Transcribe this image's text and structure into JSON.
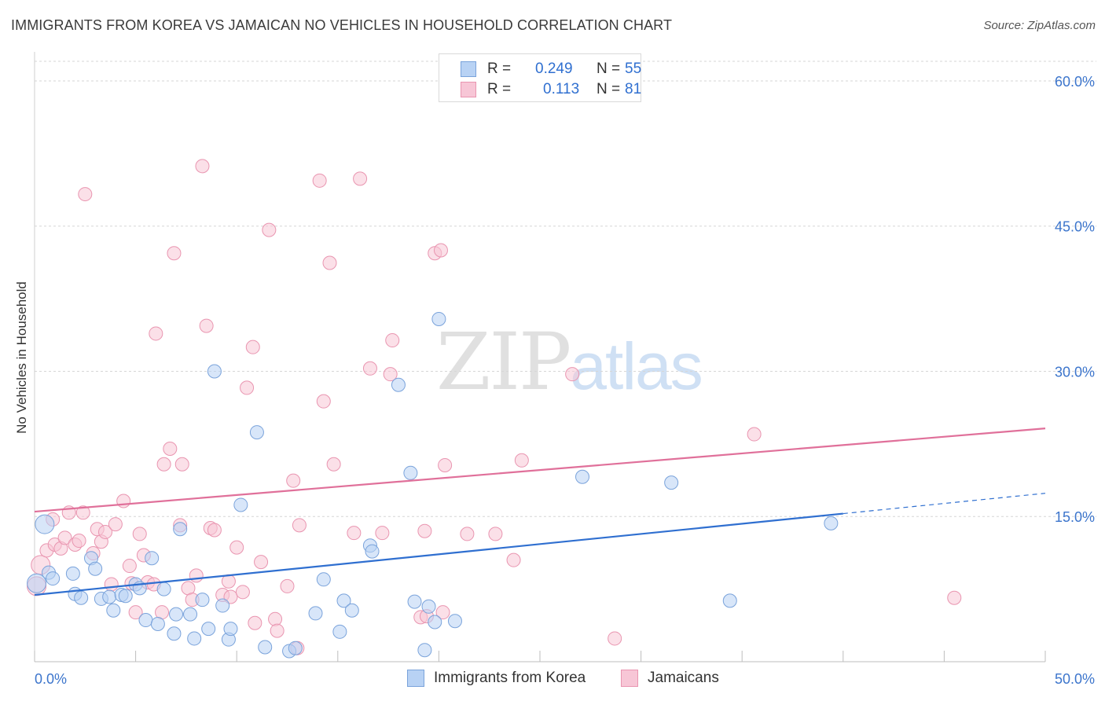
{
  "header": {
    "title": "IMMIGRANTS FROM KOREA VS JAMAICAN NO VEHICLES IN HOUSEHOLD CORRELATION CHART",
    "source": "Source: ZipAtlas.com"
  },
  "watermark": {
    "zip": "ZIP",
    "atlas": "atlas"
  },
  "stats": {
    "rows": [
      {
        "r_label": "R =",
        "r_value": "0.249",
        "n_label": "N =",
        "n_value": "55",
        "series": "Immigrants from Korea"
      },
      {
        "r_label": "R =",
        "r_value": "0.113",
        "n_label": "N =",
        "n_value": "81",
        "series": "Jamaicans"
      }
    ]
  },
  "legend": {
    "items": [
      {
        "label": "Immigrants from Korea"
      },
      {
        "label": "Jamaicans"
      }
    ]
  },
  "colors": {
    "blue_fill": "#b8d2f4",
    "blue_stroke": "#7aa3db",
    "blue_line": "#2f6fd0",
    "pink_fill": "#f7c6d6",
    "pink_stroke": "#e995b0",
    "pink_line": "#e0709a",
    "tick_label": "#3c75cc",
    "grid": "#d6d6d6"
  },
  "chart_data": {
    "type": "scatter",
    "title": "IMMIGRANTS FROM KOREA VS JAMAICAN NO VEHICLES IN HOUSEHOLD CORRELATION CHART",
    "xlabel": "",
    "ylabel": "No Vehicles in Household",
    "xlim": [
      0,
      50
    ],
    "ylim": [
      0,
      63
    ],
    "x_tick_labels": [
      "0.0%",
      "50.0%"
    ],
    "y_ticks": [
      15,
      30,
      45,
      60
    ],
    "y_tick_labels": [
      "15.0%",
      "30.0%",
      "45.0%",
      "60.0%"
    ],
    "grid": "horizontal dashed",
    "legend_position": "bottom-center",
    "series": [
      {
        "name": "Immigrants from Korea",
        "color": "#b8d2f4",
        "points": [
          [
            0.1,
            8.1
          ],
          [
            0.5,
            14.2
          ],
          [
            0.7,
            9.2
          ],
          [
            0.9,
            8.6
          ],
          [
            1.9,
            9.1
          ],
          [
            2.0,
            7.0
          ],
          [
            2.3,
            6.6
          ],
          [
            2.8,
            10.7
          ],
          [
            3.0,
            9.6
          ],
          [
            3.3,
            6.5
          ],
          [
            3.7,
            6.7
          ],
          [
            3.9,
            5.3
          ],
          [
            4.3,
            6.9
          ],
          [
            4.5,
            6.8
          ],
          [
            5.0,
            8.0
          ],
          [
            5.2,
            7.6
          ],
          [
            5.5,
            4.3
          ],
          [
            5.8,
            10.7
          ],
          [
            6.1,
            3.9
          ],
          [
            6.4,
            7.5
          ],
          [
            6.9,
            2.9
          ],
          [
            7.0,
            4.9
          ],
          [
            7.2,
            13.7
          ],
          [
            7.7,
            4.9
          ],
          [
            7.9,
            2.4
          ],
          [
            8.3,
            6.4
          ],
          [
            8.6,
            3.4
          ],
          [
            8.9,
            30.0
          ],
          [
            9.3,
            5.8
          ],
          [
            9.6,
            2.3
          ],
          [
            9.7,
            3.4
          ],
          [
            10.2,
            16.2
          ],
          [
            11.0,
            23.7
          ],
          [
            11.4,
            1.5
          ],
          [
            12.6,
            1.1
          ],
          [
            12.9,
            1.4
          ],
          [
            13.9,
            5.0
          ],
          [
            14.3,
            8.5
          ],
          [
            15.1,
            3.1
          ],
          [
            15.3,
            6.3
          ],
          [
            15.7,
            5.3
          ],
          [
            16.6,
            12.0
          ],
          [
            16.7,
            11.4
          ],
          [
            18.0,
            28.6
          ],
          [
            18.6,
            19.5
          ],
          [
            18.8,
            6.2
          ],
          [
            19.3,
            1.2
          ],
          [
            19.5,
            5.7
          ],
          [
            19.8,
            4.1
          ],
          [
            20.0,
            35.4
          ],
          [
            20.8,
            4.2
          ],
          [
            27.1,
            19.1
          ],
          [
            31.5,
            18.5
          ],
          [
            34.4,
            6.3
          ],
          [
            39.4,
            14.3
          ]
        ]
      },
      {
        "name": "Jamaicans",
        "color": "#f7c6d6",
        "points": [
          [
            0.1,
            7.8
          ],
          [
            0.3,
            10.0
          ],
          [
            0.6,
            11.5
          ],
          [
            0.9,
            14.7
          ],
          [
            1.0,
            12.1
          ],
          [
            1.3,
            11.7
          ],
          [
            1.5,
            12.8
          ],
          [
            1.7,
            15.4
          ],
          [
            2.0,
            12.1
          ],
          [
            2.2,
            12.5
          ],
          [
            2.4,
            15.4
          ],
          [
            2.5,
            48.3
          ],
          [
            2.9,
            11.2
          ],
          [
            3.1,
            13.7
          ],
          [
            3.3,
            12.4
          ],
          [
            3.5,
            13.4
          ],
          [
            3.8,
            8.0
          ],
          [
            4.0,
            14.2
          ],
          [
            4.4,
            16.6
          ],
          [
            4.7,
            9.9
          ],
          [
            4.8,
            8.1
          ],
          [
            5.0,
            5.1
          ],
          [
            5.2,
            13.2
          ],
          [
            5.4,
            11.0
          ],
          [
            5.6,
            8.2
          ],
          [
            5.9,
            8.0
          ],
          [
            6.0,
            33.9
          ],
          [
            6.3,
            5.1
          ],
          [
            6.4,
            20.4
          ],
          [
            6.7,
            22.0
          ],
          [
            6.9,
            42.2
          ],
          [
            7.2,
            14.1
          ],
          [
            7.3,
            20.4
          ],
          [
            7.6,
            7.6
          ],
          [
            7.8,
            6.4
          ],
          [
            8.0,
            8.9
          ],
          [
            8.3,
            51.2
          ],
          [
            8.5,
            34.7
          ],
          [
            8.7,
            13.8
          ],
          [
            8.9,
            13.6
          ],
          [
            9.3,
            6.9
          ],
          [
            9.6,
            8.3
          ],
          [
            9.7,
            6.7
          ],
          [
            10.0,
            11.8
          ],
          [
            10.3,
            7.2
          ],
          [
            10.5,
            28.3
          ],
          [
            10.8,
            32.5
          ],
          [
            10.9,
            4.0
          ],
          [
            11.2,
            10.3
          ],
          [
            11.6,
            44.6
          ],
          [
            11.9,
            4.4
          ],
          [
            12.0,
            3.2
          ],
          [
            12.5,
            7.8
          ],
          [
            12.8,
            18.7
          ],
          [
            13.0,
            1.4
          ],
          [
            13.1,
            14.1
          ],
          [
            14.1,
            49.7
          ],
          [
            14.3,
            26.9
          ],
          [
            14.6,
            41.2
          ],
          [
            14.8,
            20.4
          ],
          [
            15.8,
            13.3
          ],
          [
            16.1,
            49.9
          ],
          [
            16.6,
            30.3
          ],
          [
            17.2,
            13.3
          ],
          [
            17.6,
            29.7
          ],
          [
            17.7,
            33.2
          ],
          [
            19.1,
            4.6
          ],
          [
            19.3,
            13.5
          ],
          [
            19.4,
            4.7
          ],
          [
            19.8,
            42.2
          ],
          [
            20.1,
            42.5
          ],
          [
            20.2,
            5.1
          ],
          [
            20.3,
            20.3
          ],
          [
            21.4,
            13.2
          ],
          [
            22.8,
            13.2
          ],
          [
            23.7,
            10.5
          ],
          [
            24.1,
            20.8
          ],
          [
            26.6,
            29.7
          ],
          [
            28.7,
            2.4
          ],
          [
            35.6,
            23.5
          ],
          [
            45.5,
            6.6
          ]
        ]
      }
    ],
    "trendlines": [
      {
        "series": "Immigrants from Korea",
        "x0": 0,
        "y0": 6.9,
        "x1": 40,
        "y1": 15.3,
        "dashed_to_x": 50,
        "dashed_to_y": 17.4
      },
      {
        "series": "Jamaicans",
        "x0": 0,
        "y0": 15.5,
        "x1": 50,
        "y1": 24.1
      }
    ]
  }
}
